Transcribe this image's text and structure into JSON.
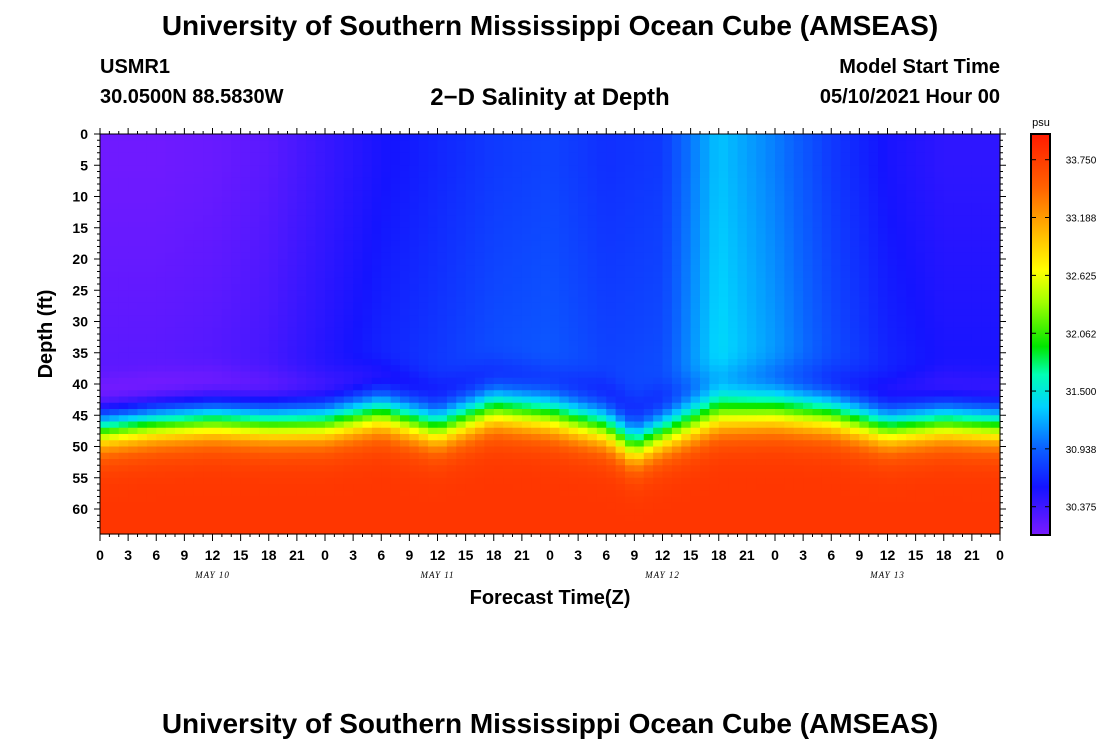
{
  "page": {
    "title_top": "University of Southern Mississippi Ocean Cube (AMSEAS)",
    "title_bottom": "University of Southern Mississippi Ocean Cube (AMSEAS)",
    "station_id": "USMR1",
    "station_coords": "30.0500N  88.5830W",
    "model_start_label": "Model Start Time",
    "model_start_value": "05/10/2021 Hour 00"
  },
  "chart_data": {
    "type": "heatmap",
    "title": "2−D Salinity at Depth",
    "xlabel": "Forecast Time(Z)",
    "ylabel": "Depth (ft)",
    "x_tick_labels": [
      "0",
      "3",
      "6",
      "9",
      "12",
      "15",
      "18",
      "21",
      "0",
      "3",
      "6",
      "9",
      "12",
      "15",
      "18",
      "21",
      "0",
      "3",
      "6",
      "9",
      "12",
      "15",
      "18",
      "21",
      "0",
      "3",
      "6",
      "9",
      "12",
      "15",
      "18",
      "21",
      "0"
    ],
    "x_hours": [
      0,
      3,
      6,
      9,
      12,
      15,
      18,
      21,
      24,
      27,
      30,
      33,
      36,
      39,
      42,
      45,
      48,
      51,
      54,
      57,
      60,
      63,
      66,
      69,
      72,
      75,
      78,
      81,
      84,
      87,
      90,
      93,
      96
    ],
    "day_labels": [
      {
        "hour": 12,
        "label": "MAY 10"
      },
      {
        "hour": 36,
        "label": "MAY 11"
      },
      {
        "hour": 60,
        "label": "MAY 12"
      },
      {
        "hour": 84,
        "label": "MAY 13"
      }
    ],
    "xlim": [
      0,
      96
    ],
    "y_ticks": [
      0,
      5,
      10,
      15,
      20,
      25,
      30,
      35,
      40,
      45,
      50,
      55,
      60
    ],
    "ylim": [
      0,
      64
    ],
    "y_inverted": true,
    "colorbar": {
      "unit": "psu",
      "tick_labels": [
        "33.750",
        "33.188",
        "32.625",
        "32.062",
        "31.500",
        "30.938",
        "30.375"
      ],
      "tick_values": [
        33.75,
        33.188,
        32.625,
        32.062,
        31.5,
        30.938,
        30.375
      ],
      "range": [
        30.1,
        34.0
      ]
    },
    "halocline_depth_ft": {
      "hours": [
        0,
        6,
        12,
        18,
        24,
        30,
        36,
        42,
        48,
        54,
        57,
        60,
        66,
        72,
        78,
        84,
        90,
        96
      ],
      "depth": [
        46,
        45,
        44.5,
        45,
        45,
        43.5,
        46,
        43,
        44,
        46,
        49,
        47,
        44,
        43.5,
        44,
        46,
        45,
        45.5
      ]
    },
    "surface_salinity_psu": {
      "hours": [
        0,
        6,
        12,
        18,
        24,
        30,
        36,
        42,
        48,
        54,
        60,
        66,
        72,
        78,
        84,
        90,
        96
      ],
      "values": [
        30.15,
        30.15,
        30.18,
        30.25,
        30.4,
        30.55,
        30.65,
        30.75,
        30.8,
        30.7,
        30.75,
        31.3,
        31.05,
        30.75,
        30.55,
        30.45,
        30.45
      ]
    },
    "deep_salinity_psu": 33.8,
    "grid": false,
    "legend": "colorbar-right"
  }
}
